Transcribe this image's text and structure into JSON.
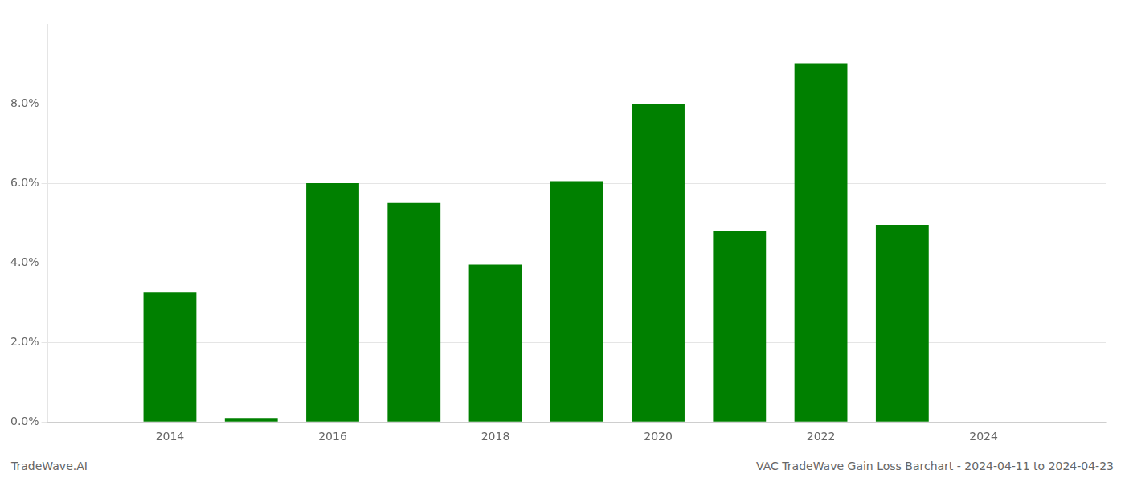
{
  "chart_data": {
    "type": "bar",
    "x": [
      2014,
      2015,
      2016,
      2017,
      2018,
      2019,
      2020,
      2021,
      2022,
      2023
    ],
    "values": [
      0.0325,
      0.001,
      0.06,
      0.055,
      0.0395,
      0.0605,
      0.08,
      0.048,
      0.09,
      0.0495
    ],
    "color": "#008000",
    "xlim": [
      2012.5,
      2025.5
    ],
    "xticks": [
      2014,
      2016,
      2018,
      2020,
      2022,
      2024
    ],
    "ylim": [
      0,
      0.1
    ],
    "yticks": [
      {
        "value": 0.0,
        "label": "0.0%"
      },
      {
        "value": 0.02,
        "label": "2.0%"
      },
      {
        "value": 0.04,
        "label": "4.0%"
      },
      {
        "value": 0.06,
        "label": "6.0%"
      },
      {
        "value": 0.08,
        "label": "8.0%"
      }
    ],
    "grid": "y",
    "annotations": [
      "TradeWave.AI",
      "VAC TradeWave Gain Loss Barchart - 2024-04-11 to 2024-04-23"
    ]
  }
}
